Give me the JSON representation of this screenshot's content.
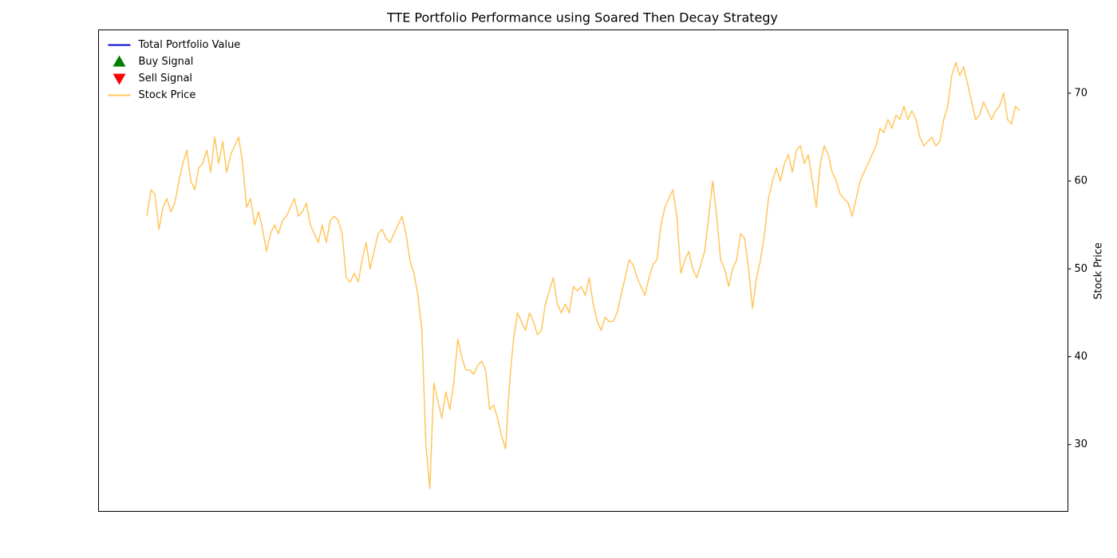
{
  "chart_data": {
    "type": "line",
    "title": "TTE Portfolio Performance using Soared Then Decay Strategy",
    "y2label": "Stock Price",
    "y2lim": [
      22.4,
      77.2
    ],
    "y2ticks": [
      30,
      40,
      50,
      60,
      70
    ],
    "legend": "upper left",
    "series": [
      {
        "name": "Total Portfolio Value",
        "color": "#0000cc"
      },
      {
        "name": "Buy Signal",
        "color": "#008000",
        "marker": "^"
      },
      {
        "name": "Sell Signal",
        "color": "#ff0000",
        "marker": "v"
      },
      {
        "name": "Stock Price",
        "color": "#ffc65c",
        "axis": "y2",
        "values": [
          56,
          59,
          58.5,
          54.5,
          57,
          58,
          56.5,
          57.5,
          60,
          62,
          63.5,
          60,
          59,
          61.5,
          62,
          63.5,
          61,
          65,
          62,
          64.5,
          61,
          63,
          64,
          65,
          62,
          57,
          58,
          55,
          56.5,
          54.5,
          52,
          54,
          55,
          54,
          55.5,
          56,
          57,
          58,
          56,
          56.5,
          57.5,
          55,
          54,
          53,
          55,
          53,
          55.5,
          56,
          55.5,
          54,
          49,
          48.5,
          49.5,
          48.5,
          51,
          53,
          50,
          52,
          54,
          54.5,
          53.5,
          53,
          54,
          55,
          56,
          54,
          51,
          49.5,
          47,
          43,
          30,
          25,
          37,
          35,
          33,
          36,
          34,
          37,
          42,
          40,
          38.5,
          38.5,
          38,
          39,
          39.5,
          38.5,
          34,
          34.5,
          33,
          31,
          29.5,
          37,
          42,
          45,
          44,
          43,
          45,
          44,
          42.5,
          43,
          46,
          47.5,
          49,
          46,
          45,
          46,
          45,
          48,
          47.5,
          48,
          47,
          49,
          46,
          44,
          43,
          44.5,
          44,
          44,
          45,
          47,
          49,
          51,
          50.5,
          49,
          48,
          47,
          49,
          50.5,
          51,
          55,
          57,
          58,
          59,
          56,
          49.5,
          51,
          52,
          50,
          49,
          50.5,
          52,
          56,
          60,
          56,
          51,
          50,
          48,
          50,
          51,
          54,
          53.5,
          50,
          45.5,
          49,
          51,
          54,
          58,
          60,
          61.5,
          60,
          62,
          63,
          61,
          63.5,
          64,
          62,
          63,
          60,
          57,
          62,
          64,
          63,
          61,
          60,
          58.5,
          58,
          57.5,
          56,
          58,
          60,
          61,
          62,
          63,
          64,
          66,
          65.5,
          67,
          66,
          67.5,
          67,
          68.5,
          67,
          68,
          67,
          65,
          64,
          64.5,
          65,
          64,
          64.5,
          67,
          68.5,
          72,
          73.5,
          72,
          73,
          71,
          69,
          67,
          67.5,
          69,
          68,
          67,
          68,
          68.5,
          70,
          67,
          66.5,
          68.5,
          68
        ]
      }
    ]
  }
}
